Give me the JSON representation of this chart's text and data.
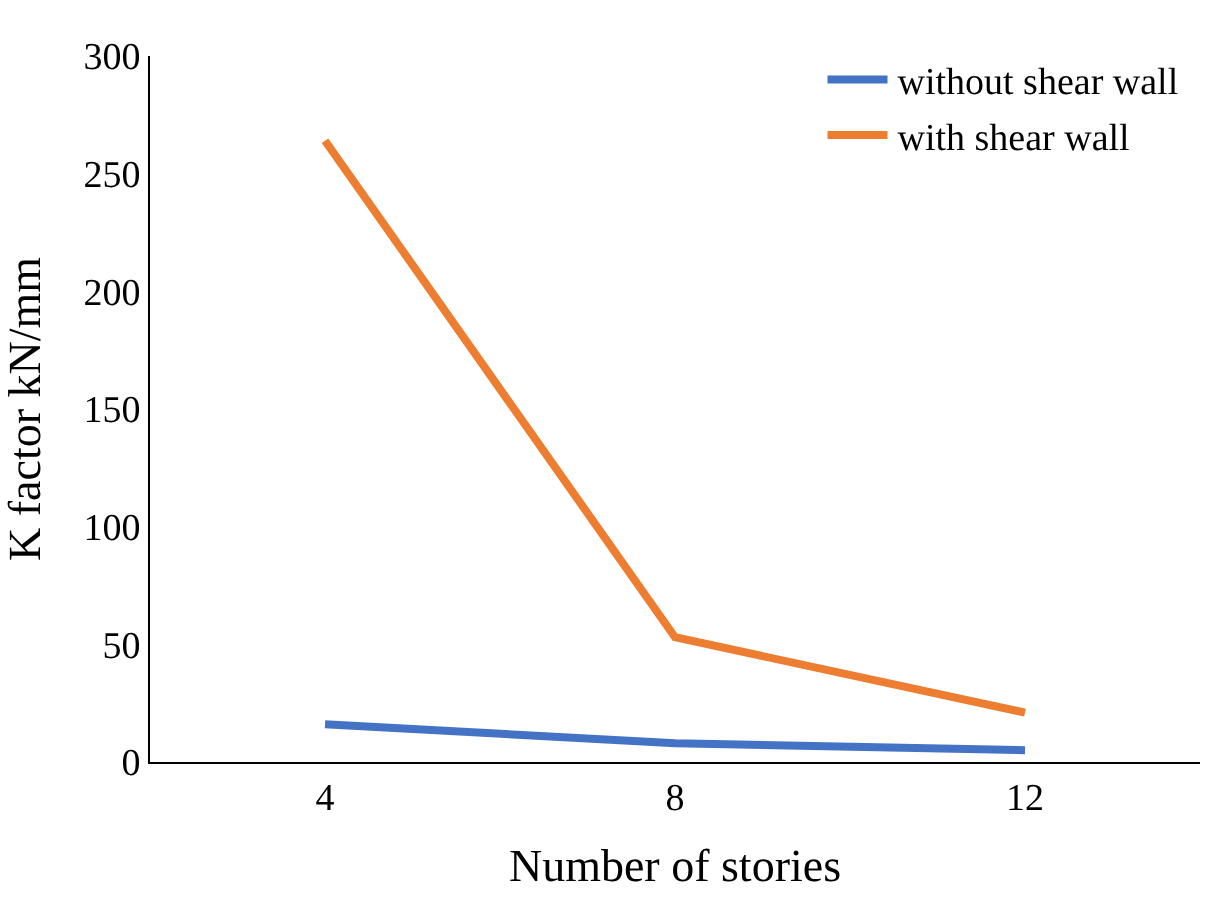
{
  "chart_data": {
    "type": "line",
    "xlabel": "Number of stories",
    "ylabel": "K factor kN/mm",
    "categories": [
      "4",
      "8",
      "12"
    ],
    "series": [
      {
        "name": "without shear wall",
        "color": "#4472c4",
        "values": [
          16,
          8,
          5
        ]
      },
      {
        "name": "with shear wall",
        "color": "#ed7d31",
        "values": [
          264,
          53,
          21
        ]
      }
    ],
    "ylim": [
      0,
      300
    ],
    "yticks": [
      0,
      50,
      100,
      150,
      200,
      250,
      300
    ],
    "legend": "top right",
    "marker": "none",
    "line_style": "solid"
  }
}
